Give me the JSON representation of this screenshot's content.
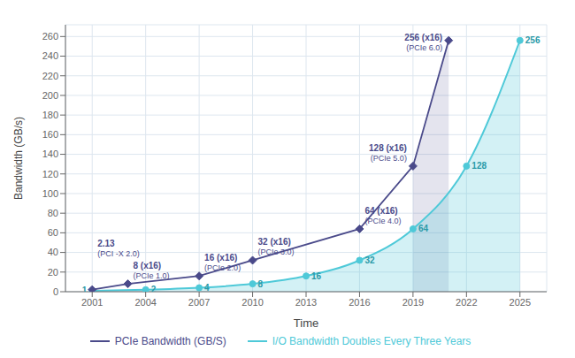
{
  "chart_data": {
    "type": "line",
    "xlabel": "Time",
    "ylabel": "Bandwidth (GB/s)",
    "series": [
      {
        "name": "PCIe Bandwidth (GB/S)",
        "type": "line",
        "color": "#4a4a8a",
        "marker": "diamond",
        "x": [
          2001,
          2003,
          2007,
          2010,
          2016,
          2019,
          2021
        ],
        "values": [
          2.13,
          8,
          16,
          32,
          64,
          128,
          256
        ],
        "data_labels": true,
        "value_labels": [
          "2.13",
          "8 (x16)",
          "16 (x16)",
          "32 (x16)",
          "64 (x16)",
          "128 (x16)",
          "256 (x16)"
        ]
      },
      {
        "name": "I/O Bandwidth Doubles Every Three Years",
        "type": "area",
        "color": "#4ec9d8",
        "marker": "circle",
        "x": [
          2001,
          2004,
          2007,
          2010,
          2013,
          2016,
          2019,
          2022,
          2025
        ],
        "values": [
          1,
          2,
          4,
          8,
          16,
          32,
          64,
          128,
          256
        ],
        "data_labels": true
      }
    ],
    "annotations": [
      {
        "x": 2001,
        "y": 2.13,
        "text": "(PCI -X 2.0)"
      },
      {
        "x": 2003,
        "y": 8,
        "text": "(PCIe 1.0)"
      },
      {
        "x": 2007,
        "y": 16,
        "text": "(PCIe 2.0)"
      },
      {
        "x": 2010,
        "y": 32,
        "text": "(PCIe 3.0)"
      },
      {
        "x": 2016,
        "y": 64,
        "text": "(PCIe 4.0)"
      },
      {
        "x": 2019,
        "y": 128,
        "text": "(PCIe 5.0)"
      },
      {
        "x": 2021,
        "y": 256,
        "text": "(PCIe 6.0)"
      }
    ],
    "xlim": [
      1999.5,
      2026.5
    ],
    "ylim": [
      0,
      272
    ],
    "xticks": [
      2001,
      2004,
      2007,
      2010,
      2013,
      2016,
      2019,
      2022,
      2025
    ],
    "yticks": [
      0,
      20,
      40,
      60,
      80,
      100,
      120,
      140,
      160,
      180,
      200,
      220,
      240,
      260
    ],
    "grid": true,
    "legend": "bottom"
  }
}
